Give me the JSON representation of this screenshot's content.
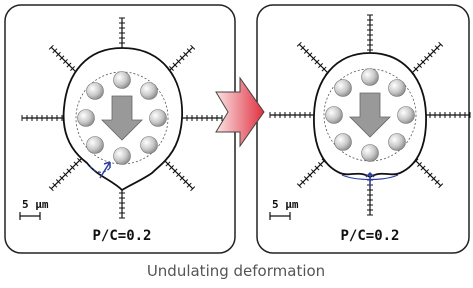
{
  "panels": [
    {
      "scale_label": "5 μm",
      "ratio_label": "P/C=0.2"
    },
    {
      "scale_label": "5 μm",
      "ratio_label": "P/C=0.2"
    }
  ],
  "caption": "Undulating deformation"
}
